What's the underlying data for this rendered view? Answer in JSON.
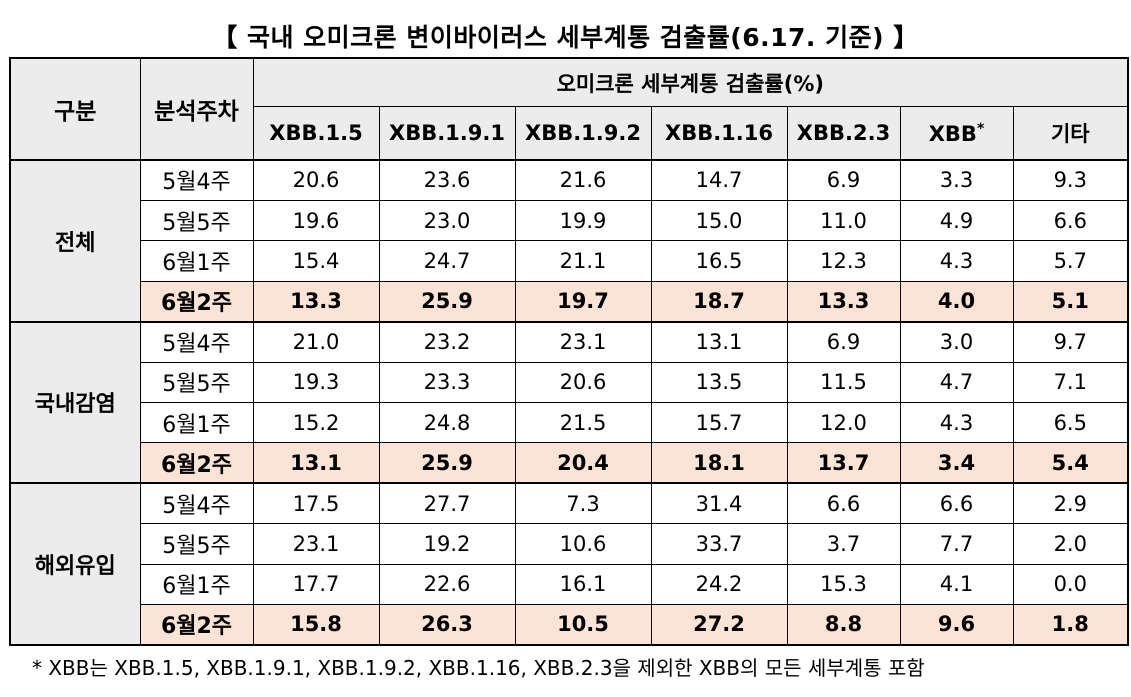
{
  "title": "【 국내 오미크론 변이바이러스 세부계통 검출률(6.17. 기준) 】",
  "table": {
    "header_gubun": "구분",
    "header_week": "분석주차",
    "header_group": "오미크론 세부계통 검출률(%)",
    "columns": [
      {
        "label": "XBB.1.5",
        "sup": ""
      },
      {
        "label": "XBB.1.9.1",
        "sup": ""
      },
      {
        "label": "XBB.1.9.2",
        "sup": ""
      },
      {
        "label": "XBB.1.16",
        "sup": ""
      },
      {
        "label": "XBB.2.3",
        "sup": ""
      },
      {
        "label": "XBB",
        "sup": "*"
      },
      {
        "label": "기타",
        "sup": ""
      }
    ],
    "groups": [
      {
        "name": "전체",
        "rows": [
          {
            "week": "5월4주",
            "values": [
              "20.6",
              "23.6",
              "21.6",
              "14.7",
              "6.9",
              "3.3",
              "9.3"
            ],
            "highlight": false
          },
          {
            "week": "5월5주",
            "values": [
              "19.6",
              "23.0",
              "19.9",
              "15.0",
              "11.0",
              "4.9",
              "6.6"
            ],
            "highlight": false
          },
          {
            "week": "6월1주",
            "values": [
              "15.4",
              "24.7",
              "21.1",
              "16.5",
              "12.3",
              "4.3",
              "5.7"
            ],
            "highlight": false
          },
          {
            "week": "6월2주",
            "values": [
              "13.3",
              "25.9",
              "19.7",
              "18.7",
              "13.3",
              "4.0",
              "5.1"
            ],
            "highlight": true
          }
        ]
      },
      {
        "name": "국내감염",
        "rows": [
          {
            "week": "5월4주",
            "values": [
              "21.0",
              "23.2",
              "23.1",
              "13.1",
              "6.9",
              "3.0",
              "9.7"
            ],
            "highlight": false
          },
          {
            "week": "5월5주",
            "values": [
              "19.3",
              "23.3",
              "20.6",
              "13.5",
              "11.5",
              "4.7",
              "7.1"
            ],
            "highlight": false
          },
          {
            "week": "6월1주",
            "values": [
              "15.2",
              "24.8",
              "21.5",
              "15.7",
              "12.0",
              "4.3",
              "6.5"
            ],
            "highlight": false
          },
          {
            "week": "6월2주",
            "values": [
              "13.1",
              "25.9",
              "20.4",
              "18.1",
              "13.7",
              "3.4",
              "5.4"
            ],
            "highlight": true
          }
        ]
      },
      {
        "name": "해외유입",
        "rows": [
          {
            "week": "5월4주",
            "values": [
              "17.5",
              "27.7",
              "7.3",
              "31.4",
              "6.6",
              "6.6",
              "2.9"
            ],
            "highlight": false
          },
          {
            "week": "5월5주",
            "values": [
              "23.1",
              "19.2",
              "10.6",
              "33.7",
              "3.7",
              "7.7",
              "2.0"
            ],
            "highlight": false
          },
          {
            "week": "6월1주",
            "values": [
              "17.7",
              "22.6",
              "16.1",
              "24.2",
              "15.3",
              "4.1",
              "0.0"
            ],
            "highlight": false
          },
          {
            "week": "6월2주",
            "values": [
              "15.8",
              "26.3",
              "10.5",
              "27.2",
              "8.8",
              "9.6",
              "1.8"
            ],
            "highlight": true
          }
        ]
      }
    ]
  },
  "footnote": "* XBB는 XBB.1.5, XBB.1.9.1, XBB.1.9.2, XBB.1.16, XBB.2.3을 제외한 XBB의 모든 세부계통 포함",
  "colors": {
    "header_bg": "#ececec",
    "highlight_bg": "#fbe3d6",
    "border": "#000000"
  }
}
